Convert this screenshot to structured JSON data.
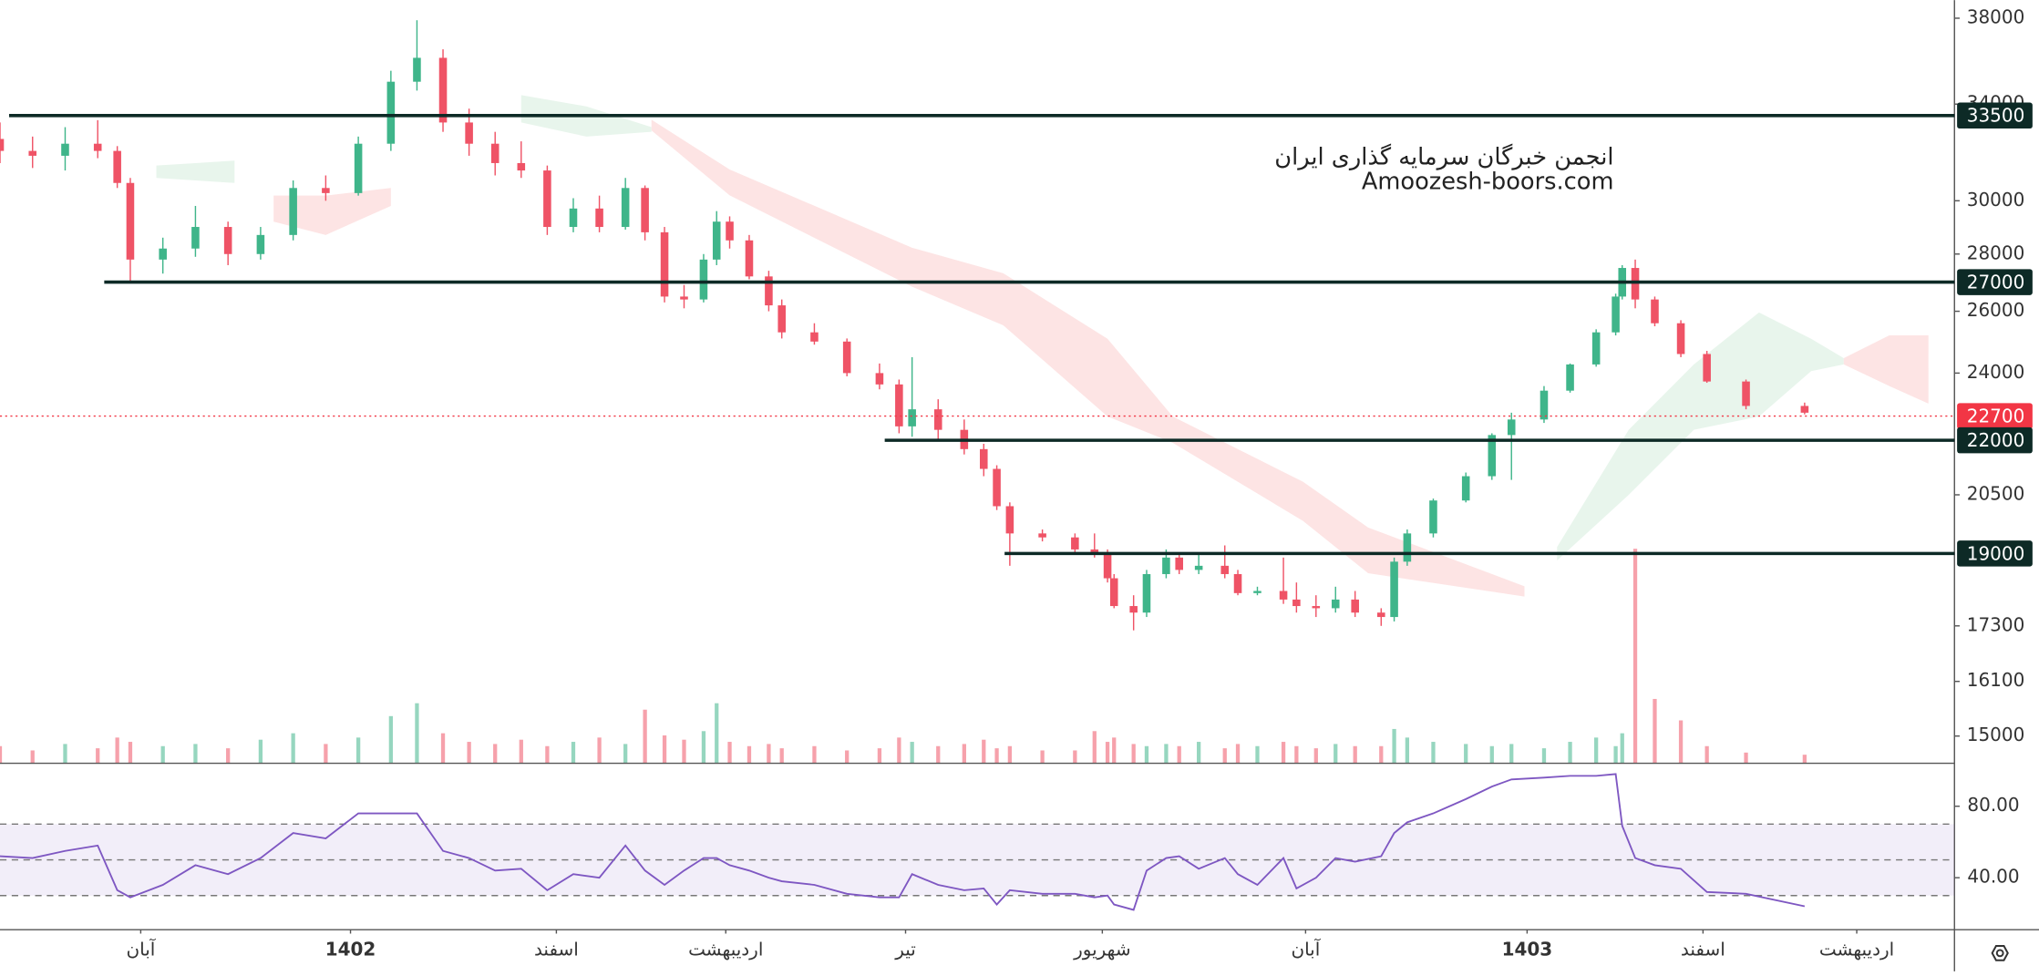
{
  "chart_data": [
    {
      "type": "candlestick",
      "x": [
        0,
        5,
        10,
        15,
        18,
        20,
        25,
        30,
        35,
        40,
        45,
        50,
        55,
        60,
        64,
        68,
        72,
        76,
        80,
        84,
        88,
        92,
        96,
        99,
        102,
        105,
        108,
        110,
        112,
        115,
        118,
        120,
        125,
        130,
        135,
        138,
        140,
        144,
        148,
        151,
        153,
        155,
        160,
        165,
        168,
        170,
        171,
        174,
        176,
        179,
        181,
        184,
        188,
        190,
        193,
        197,
        199,
        202,
        205,
        208,
        212,
        214,
        216,
        220,
        225,
        229,
        232,
        237,
        241,
        245,
        248,
        249,
        251,
        254,
        258,
        262,
        268,
        277
      ],
      "open": [
        32500,
        32000,
        31800,
        32300,
        32000,
        30700,
        27800,
        28200,
        29000,
        28000,
        28700,
        30500,
        30300,
        32300,
        35000,
        36100,
        33200,
        32300,
        31500,
        31200,
        29000,
        29700,
        29000,
        30500,
        28800,
        26500,
        26400,
        27800,
        29200,
        28500,
        27200,
        26200,
        25300,
        25000,
        24000,
        23650,
        22400,
        22900,
        22300,
        21750,
        21200,
        20200,
        19500,
        19400,
        19100,
        19000,
        18400,
        17750,
        17600,
        18500,
        18900,
        18600,
        18700,
        18500,
        18050,
        18100,
        17900,
        17750,
        17700,
        17900,
        17600,
        17500,
        18800,
        19500,
        20350,
        21000,
        22150,
        22600,
        23460,
        24270,
        25300,
        26500,
        27500,
        26400,
        25600,
        24600,
        23740,
        23000
      ],
      "high": [
        33200,
        32600,
        33000,
        33300,
        32200,
        30900,
        28600,
        29800,
        29200,
        29000,
        30800,
        31000,
        32600,
        35500,
        37900,
        36500,
        33800,
        32800,
        32400,
        31400,
        30100,
        30200,
        30900,
        30600,
        29000,
        26900,
        28000,
        29600,
        29400,
        28700,
        27400,
        26400,
        25600,
        25100,
        24300,
        23800,
        24500,
        23200,
        22600,
        21900,
        21300,
        20300,
        19600,
        19500,
        19500,
        19100,
        18500,
        18000,
        18600,
        19100,
        19000,
        19000,
        19200,
        18600,
        18200,
        18900,
        18300,
        18000,
        18200,
        18100,
        17700,
        18900,
        19600,
        20400,
        21100,
        22200,
        22800,
        23600,
        24300,
        25400,
        26600,
        27600,
        27800,
        26500,
        25700,
        24700,
        23800,
        23100
      ],
      "low": [
        31500,
        31300,
        31200,
        31700,
        30500,
        27000,
        27300,
        27900,
        27600,
        27800,
        28500,
        30000,
        30200,
        32000,
        34600,
        32800,
        31800,
        31000,
        30900,
        28700,
        28800,
        28800,
        28900,
        28500,
        26300,
        26100,
        26300,
        27600,
        28200,
        27100,
        26000,
        25100,
        24900,
        23900,
        23500,
        22200,
        22100,
        22000,
        21600,
        21000,
        20100,
        18700,
        19300,
        19000,
        18900,
        18300,
        17700,
        17200,
        17500,
        18400,
        18500,
        18500,
        18400,
        18000,
        18000,
        17800,
        17600,
        17500,
        17600,
        17500,
        17300,
        17400,
        18700,
        19400,
        20300,
        20900,
        20900,
        22500,
        23400,
        24200,
        25200,
        26400,
        26100,
        25500,
        24500,
        23700,
        22900,
        22750
      ],
      "close": [
        32000,
        31800,
        32300,
        32000,
        30700,
        27800,
        28200,
        29000,
        28000,
        28700,
        30500,
        30300,
        32300,
        35000,
        36100,
        33200,
        32300,
        31500,
        31200,
        29000,
        29700,
        29000,
        30500,
        28800,
        26500,
        26400,
        27800,
        29200,
        28500,
        27200,
        26200,
        25300,
        25000,
        24000,
        23650,
        22400,
        22900,
        22300,
        21750,
        21200,
        20200,
        19500,
        19400,
        19100,
        19000,
        18400,
        17750,
        17600,
        18500,
        18900,
        18600,
        18700,
        18500,
        18050,
        18100,
        17900,
        17750,
        17700,
        17900,
        17600,
        17500,
        18800,
        19500,
        20350,
        21000,
        22150,
        22600,
        23460,
        24270,
        25300,
        26500,
        27500,
        26400,
        25600,
        24600,
        23740,
        23000,
        22800
      ],
      "volume": [
        8,
        6,
        9,
        7,
        12,
        10,
        8,
        9,
        7,
        11,
        14,
        9,
        12,
        22,
        28,
        14,
        10,
        9,
        11,
        8,
        10,
        12,
        9,
        25,
        13,
        11,
        15,
        28,
        10,
        8,
        9,
        7,
        8,
        6,
        7,
        12,
        10,
        8,
        9,
        11,
        7,
        8,
        6,
        6,
        15,
        10,
        12,
        9,
        8,
        9,
        8,
        10,
        7,
        9,
        8,
        10,
        8,
        7,
        9,
        8,
        8,
        16,
        12,
        10,
        9,
        8,
        9,
        7,
        10,
        12,
        8,
        14,
        100,
        30,
        20,
        8,
        5,
        4
      ],
      "volume_lim": [
        0,
        100
      ],
      "up_color": "#3fb58a",
      "down_color": "#ef5366",
      "log_scale": true,
      "xlim": [
        0,
        300
      ],
      "ylim": [
        14480,
        38900
      ],
      "yticks": [
        38000,
        34000,
        30000,
        28000,
        26000,
        24000,
        20500,
        17300,
        16100,
        15000
      ],
      "xticks": [
        {
          "value": 21.6,
          "label": "آبان"
        },
        {
          "value": 53.8,
          "label": "1402"
        },
        {
          "value": 85.4,
          "label": "اسفند"
        },
        {
          "value": 111.4,
          "label": "اردیبهشت"
        },
        {
          "value": 139,
          "label": "تیر"
        },
        {
          "value": 169.2,
          "label": "شهریور"
        },
        {
          "value": 200.4,
          "label": "آبان"
        },
        {
          "value": 234.4,
          "label": "1403"
        },
        {
          "value": 261.4,
          "label": "اسفند"
        },
        {
          "value": 285,
          "label": "اردیبهشت"
        }
      ],
      "levels": [
        {
          "value": 33500,
          "from": 1.4,
          "color": "#0d2a26",
          "style": "solid"
        },
        {
          "value": 27000,
          "from": 16,
          "color": "#0d2a26",
          "style": "solid"
        },
        {
          "value": 22700,
          "from": 0,
          "color": "#f23645",
          "style": "dotted"
        },
        {
          "value": 22000,
          "from": 135.8,
          "color": "#0d2a26",
          "style": "solid"
        },
        {
          "value": 19000,
          "from": 154.2,
          "color": "#0d2a26",
          "style": "solid"
        }
      ],
      "clouds": [
        {
          "color": "#e8f5ec",
          "x": [
            24,
            30,
            36
          ],
          "upper": [
            31400,
            31500,
            31600
          ],
          "lower": [
            30900,
            30800,
            30700
          ]
        },
        {
          "color": "#fde4e4",
          "x": [
            42,
            50,
            60
          ],
          "upper": [
            30200,
            30200,
            30500
          ],
          "lower": [
            29200,
            28700,
            29800
          ]
        },
        {
          "color": "#e8f5ec",
          "x": [
            80,
            90,
            100
          ],
          "upper": [
            34400,
            33900,
            33000
          ],
          "lower": [
            33200,
            32600,
            32800
          ]
        },
        {
          "color": "#fde4e4",
          "x": [
            100,
            112,
            140,
            154,
            170,
            180,
            200,
            210,
            234
          ],
          "upper": [
            33320,
            31240,
            28230,
            27310,
            25090,
            22690,
            20850,
            19650,
            18210
          ],
          "lower": [
            32860,
            30210,
            26840,
            25530,
            22690,
            21930,
            19820,
            18520,
            17970
          ]
        },
        {
          "color": "#e8f5ec",
          "x": [
            239,
            250,
            260,
            270,
            278,
            283
          ],
          "upper": [
            19160,
            22300,
            24270,
            25960,
            25090,
            24470
          ],
          "lower": [
            18830,
            20500,
            22300,
            22690,
            24060,
            24270
          ]
        },
        {
          "color": "#fde4e4",
          "x": [
            283,
            290,
            296
          ],
          "upper": [
            24470,
            25200,
            25200
          ],
          "lower": [
            24270,
            23600,
            23070
          ]
        }
      ],
      "watermark": [
        "انجمن خبرگان سرمایه گذاری ایران",
        "Amoozesh-boors.com"
      ]
    },
    {
      "type": "line",
      "values": [
        52,
        51,
        55,
        58,
        33,
        29,
        36,
        47,
        42,
        51,
        65,
        62,
        76,
        76,
        76,
        55,
        51,
        44,
        45,
        33,
        42,
        40,
        58,
        44,
        36,
        44,
        51,
        51,
        47,
        44,
        40,
        38,
        36,
        31,
        29,
        29,
        42,
        36,
        33,
        34,
        25,
        33,
        31,
        31,
        29,
        30,
        25,
        22,
        44,
        51,
        52,
        45,
        51,
        42,
        36,
        51,
        34,
        40,
        51,
        49,
        52,
        65,
        71,
        76,
        84,
        91,
        95,
        96,
        97,
        97,
        98,
        69,
        51,
        47,
        45,
        32,
        31,
        24
      ],
      "color": "#7e57c2",
      "ylim": [
        10.9,
        103.3
      ],
      "yticks": [
        {
          "value": 80,
          "label": "80.00"
        },
        {
          "value": 40,
          "label": "40.00"
        }
      ],
      "band": [
        30,
        70
      ],
      "hlines": [
        30,
        50,
        70
      ]
    }
  ]
}
